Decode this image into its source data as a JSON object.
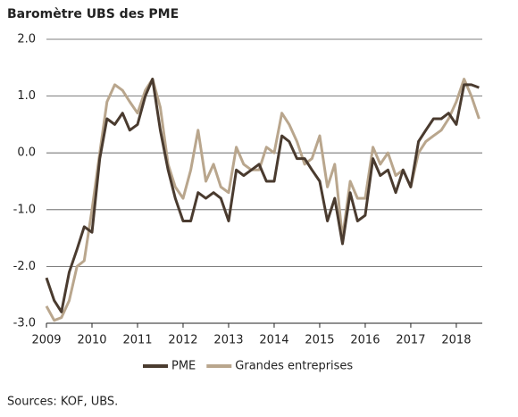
{
  "chart_data": {
    "type": "line",
    "title": "Baromètre UBS des PME",
    "source": "Sources: KOF, UBS.",
    "x": [
      2009,
      2009.17,
      2009.33,
      2009.5,
      2009.67,
      2009.83,
      2010,
      2010.17,
      2010.33,
      2010.5,
      2010.67,
      2010.83,
      2011,
      2011.17,
      2011.33,
      2011.5,
      2011.67,
      2011.83,
      2012,
      2012.17,
      2012.33,
      2012.5,
      2012.67,
      2012.83,
      2013,
      2013.17,
      2013.33,
      2013.5,
      2013.67,
      2013.83,
      2014,
      2014.17,
      2014.33,
      2014.5,
      2014.67,
      2014.83,
      2015,
      2015.17,
      2015.33,
      2015.5,
      2015.67,
      2015.83,
      2016,
      2016.17,
      2016.33,
      2016.5,
      2016.67,
      2016.83,
      2017,
      2017.17,
      2017.33,
      2017.5,
      2017.67,
      2017.83,
      2018,
      2018.17,
      2018.33,
      2018.5
    ],
    "series": [
      {
        "name": "PME",
        "color": "#4a3b2f",
        "values": [
          -2.2,
          -2.6,
          -2.8,
          -2.1,
          -1.7,
          -1.3,
          -1.4,
          -0.1,
          0.6,
          0.5,
          0.7,
          0.4,
          0.5,
          1.0,
          1.3,
          0.4,
          -0.3,
          -0.8,
          -1.2,
          -1.2,
          -0.7,
          -0.8,
          -0.7,
          -0.8,
          -1.2,
          -0.3,
          -0.4,
          -0.3,
          -0.2,
          -0.5,
          -0.5,
          0.3,
          0.2,
          -0.1,
          -0.1,
          -0.3,
          -0.5,
          -1.2,
          -0.8,
          -1.6,
          -0.7,
          -1.2,
          -1.1,
          -0.1,
          -0.4,
          -0.3,
          -0.7,
          -0.3,
          -0.6,
          0.2,
          0.4,
          0.6,
          0.6,
          0.7,
          0.5,
          1.2,
          1.2,
          1.15
        ]
      },
      {
        "name": "Grandes entreprises",
        "color": "#b9a68d",
        "values": [
          -2.7,
          -2.95,
          -2.9,
          -2.6,
          -2.0,
          -1.9,
          -1.0,
          0.0,
          0.9,
          1.2,
          1.1,
          0.9,
          0.7,
          1.1,
          1.3,
          0.8,
          -0.2,
          -0.6,
          -0.8,
          -0.3,
          0.4,
          -0.5,
          -0.2,
          -0.6,
          -0.7,
          0.1,
          -0.2,
          -0.3,
          -0.3,
          0.1,
          0.0,
          0.7,
          0.5,
          0.2,
          -0.2,
          -0.1,
          0.3,
          -0.6,
          -0.2,
          -1.5,
          -0.5,
          -0.8,
          -0.8,
          0.1,
          -0.2,
          0.0,
          -0.4,
          -0.3,
          -0.6,
          0.0,
          0.2,
          0.3,
          0.4,
          0.6,
          0.9,
          1.3,
          1.0,
          0.6
        ]
      }
    ],
    "xlim": [
      2009,
      2018.57
    ],
    "xticks": [
      2009,
      2010,
      2011,
      2012,
      2013,
      2014,
      2015,
      2016,
      2017,
      2018
    ],
    "ylim": [
      -3,
      2
    ],
    "yticks": [
      {
        "value": -3,
        "label": "-3.0"
      },
      {
        "value": -2,
        "label": "-2.0"
      },
      {
        "value": -1,
        "label": "-1.0"
      },
      {
        "value": 0,
        "label": "0.0"
      },
      {
        "value": 1,
        "label": "1.0"
      },
      {
        "value": 2,
        "label": "2.0"
      }
    ],
    "grid": true
  }
}
